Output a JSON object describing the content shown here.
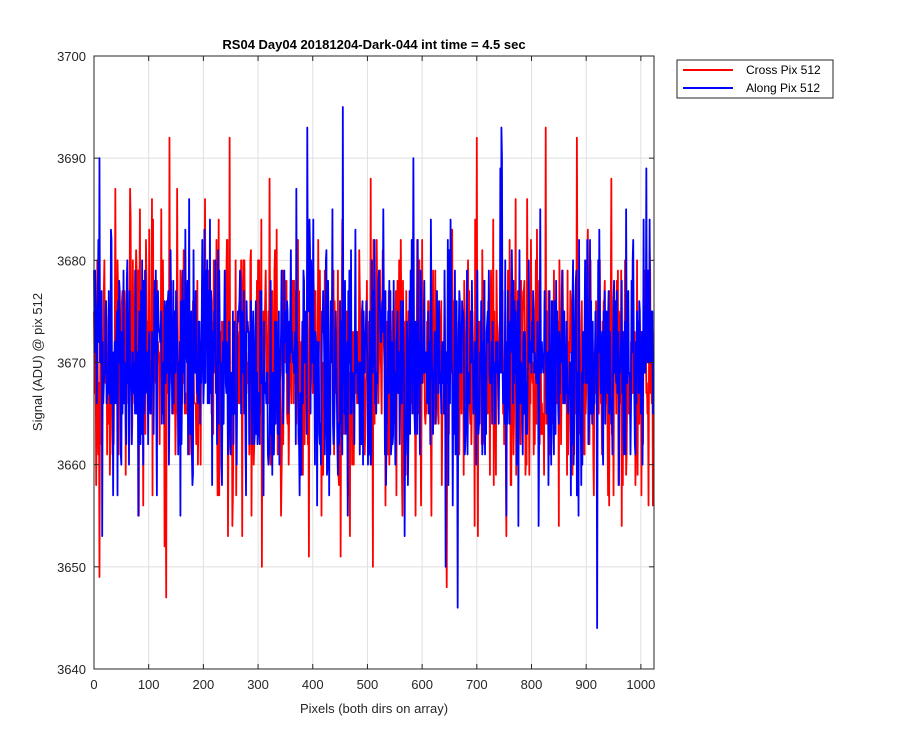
{
  "chart_data": {
    "type": "line",
    "title": "RS04 Day04 20181204-Dark-044 int time = 4.5 sec",
    "xlabel": "Pixels (both dirs on array)",
    "ylabel": "Signal (ADU) @ pix 512",
    "xlim": [
      0,
      1024
    ],
    "ylim": [
      3640,
      3700
    ],
    "xticks": [
      0,
      100,
      200,
      300,
      400,
      500,
      600,
      700,
      800,
      900,
      1000
    ],
    "yticks": [
      3640,
      3650,
      3660,
      3670,
      3680,
      3690,
      3700
    ],
    "grid": true,
    "legend_position": "top-right, outside plot area",
    "mean_level": 3670,
    "n_points": 1024,
    "series": [
      {
        "name": "Cross Pix 512",
        "color": "#ff0000",
        "std": 6.5,
        "seed": 17,
        "extrema": [
          {
            "x": 10,
            "y": 3649
          },
          {
            "x": 132,
            "y": 3647
          },
          {
            "x": 138,
            "y": 3692
          },
          {
            "x": 248,
            "y": 3692
          },
          {
            "x": 307,
            "y": 3650
          },
          {
            "x": 645,
            "y": 3648
          },
          {
            "x": 700,
            "y": 3692
          },
          {
            "x": 826,
            "y": 3693
          },
          {
            "x": 883,
            "y": 3692
          }
        ]
      },
      {
        "name": "Along Pix 512",
        "color": "#0000ff",
        "std": 6.5,
        "seed": 42,
        "extrema": [
          {
            "x": 10,
            "y": 3690
          },
          {
            "x": 455,
            "y": 3695
          },
          {
            "x": 584,
            "y": 3690
          },
          {
            "x": 643,
            "y": 3650
          },
          {
            "x": 665,
            "y": 3646
          },
          {
            "x": 745,
            "y": 3693
          },
          {
            "x": 920,
            "y": 3644
          },
          {
            "x": 1010,
            "y": 3689
          }
        ]
      }
    ]
  }
}
